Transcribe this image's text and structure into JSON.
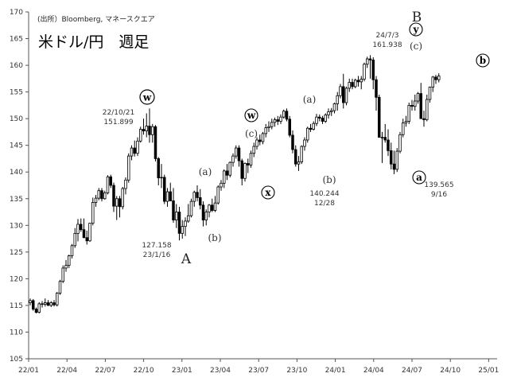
{
  "source": "(出所）Bloomberg, マネースクエア",
  "title": "米ドル/円　週足",
  "chart_data": {
    "type": "candlestick",
    "title": "米ドル/円　週足",
    "xlabel": "",
    "ylabel": "",
    "ylim": [
      105,
      170
    ],
    "yticks": [
      105,
      110,
      115,
      120,
      125,
      130,
      135,
      140,
      145,
      150,
      155,
      160,
      165,
      170
    ],
    "xtick_labels": [
      "22/01",
      "22/04",
      "22/07",
      "22/10",
      "23/01",
      "23/04",
      "23/07",
      "23/10",
      "24/01",
      "24/04",
      "24/07",
      "24/10",
      "25/01"
    ],
    "grid": false,
    "frequency": "weekly",
    "x_range": [
      "2022-01-03",
      "2025-01-06"
    ],
    "key_points": [
      {
        "x": "2022-10-21",
        "y": 151.899
      },
      {
        "x": "2023-01-16",
        "y": 127.158
      },
      {
        "x": "2023-12-28",
        "y": 140.244
      },
      {
        "x": "2024-07-03",
        "y": 161.938
      },
      {
        "x": "2024-09-16",
        "y": 139.565
      }
    ],
    "ohlc": [
      [
        115.5,
        116.3,
        115.0,
        115.9
      ],
      [
        115.9,
        116.2,
        114.0,
        114.3
      ],
      [
        114.3,
        114.6,
        113.5,
        113.7
      ],
      [
        113.7,
        115.6,
        113.5,
        115.3
      ],
      [
        115.3,
        115.8,
        114.6,
        115.2
      ],
      [
        115.2,
        116.3,
        114.8,
        115.5
      ],
      [
        115.5,
        116.0,
        114.9,
        115.0
      ],
      [
        115.0,
        115.8,
        114.7,
        115.5
      ],
      [
        115.5,
        116.0,
        114.8,
        115.1
      ],
      [
        115.1,
        117.5,
        114.8,
        117.3
      ],
      [
        117.3,
        119.8,
        117.0,
        119.5
      ],
      [
        119.5,
        122.5,
        119.2,
        122.0
      ],
      [
        122.0,
        123.5,
        121.3,
        122.5
      ],
      [
        122.5,
        124.5,
        122.0,
        124.3
      ],
      [
        124.3,
        126.5,
        123.8,
        126.2
      ],
      [
        126.2,
        129.5,
        125.8,
        128.5
      ],
      [
        128.5,
        131.2,
        127.0,
        130.2
      ],
      [
        130.2,
        131.3,
        128.8,
        129.2
      ],
      [
        129.2,
        131.3,
        127.6,
        127.7
      ],
      [
        127.7,
        129.0,
        126.4,
        127.1
      ],
      [
        127.1,
        130.5,
        126.9,
        130.4
      ],
      [
        130.4,
        135.2,
        130.0,
        134.3
      ],
      [
        134.3,
        135.7,
        133.5,
        135.1
      ],
      [
        135.1,
        137.0,
        134.7,
        136.5
      ],
      [
        136.5,
        137.0,
        134.5,
        135.0
      ],
      [
        135.0,
        136.5,
        134.8,
        136.1
      ],
      [
        136.1,
        139.4,
        135.8,
        139.1
      ],
      [
        139.1,
        139.5,
        137.0,
        137.5
      ],
      [
        137.5,
        138.0,
        132.5,
        133.6
      ],
      [
        133.6,
        135.5,
        131.0,
        135.0
      ],
      [
        135.0,
        135.5,
        131.5,
        133.5
      ],
      [
        133.5,
        137.2,
        133.0,
        136.9
      ],
      [
        136.9,
        139.0,
        135.8,
        138.5
      ],
      [
        138.5,
        143.5,
        138.0,
        143.0
      ],
      [
        143.0,
        145.0,
        142.2,
        144.5
      ],
      [
        144.5,
        145.9,
        142.9,
        143.5
      ],
      [
        143.5,
        146.5,
        143.0,
        145.8
      ],
      [
        145.8,
        148.5,
        145.5,
        148.0
      ],
      [
        148.0,
        150.0,
        147.0,
        147.7
      ],
      [
        147.7,
        151.0,
        146.5,
        148.6
      ],
      [
        148.6,
        151.9,
        145.5,
        147.0
      ],
      [
        147.0,
        149.0,
        145.5,
        148.5
      ],
      [
        148.5,
        148.8,
        142.0,
        142.5
      ],
      [
        142.5,
        142.8,
        137.5,
        138.9
      ],
      [
        138.9,
        141.5,
        137.0,
        139.0
      ],
      [
        139.0,
        139.5,
        134.0,
        134.5
      ],
      [
        134.5,
        137.0,
        133.5,
        136.3
      ],
      [
        136.3,
        138.0,
        134.5,
        134.6
      ],
      [
        134.6,
        137.0,
        130.5,
        131.0
      ],
      [
        131.0,
        134.0,
        129.5,
        132.5
      ],
      [
        132.5,
        133.5,
        127.2,
        128.5
      ],
      [
        128.5,
        131.0,
        127.5,
        129.8
      ],
      [
        129.8,
        131.5,
        128.0,
        130.8
      ],
      [
        130.8,
        134.0,
        130.5,
        131.8
      ],
      [
        131.8,
        135.0,
        131.5,
        134.5
      ],
      [
        134.5,
        136.5,
        133.5,
        136.2
      ],
      [
        136.2,
        137.5,
        134.5,
        135.2
      ],
      [
        135.2,
        136.8,
        133.0,
        133.8
      ],
      [
        133.8,
        134.5,
        129.8,
        131.0
      ],
      [
        131.0,
        133.0,
        130.0,
        132.5
      ],
      [
        132.5,
        134.0,
        131.5,
        133.8
      ],
      [
        133.8,
        135.0,
        132.5,
        132.8
      ],
      [
        132.8,
        135.5,
        132.5,
        134.2
      ],
      [
        134.2,
        137.5,
        133.9,
        137.2
      ],
      [
        137.2,
        138.5,
        136.5,
        137.9
      ],
      [
        137.9,
        140.5,
        137.0,
        140.2
      ],
      [
        140.2,
        141.5,
        138.5,
        139.4
      ],
      [
        139.4,
        142.0,
        139.0,
        141.8
      ],
      [
        141.8,
        143.5,
        141.0,
        143.0
      ],
      [
        143.0,
        145.0,
        142.5,
        144.5
      ],
      [
        144.5,
        145.0,
        141.0,
        142.1
      ],
      [
        142.1,
        142.5,
        137.5,
        138.8
      ],
      [
        138.8,
        141.8,
        138.2,
        141.6
      ],
      [
        141.6,
        142.5,
        139.8,
        141.3
      ],
      [
        141.3,
        144.0,
        140.8,
        143.5
      ],
      [
        143.5,
        145.5,
        142.8,
        144.8
      ],
      [
        144.8,
        146.5,
        144.2,
        146.0
      ],
      [
        146.0,
        147.0,
        145.0,
        145.7
      ],
      [
        145.7,
        147.5,
        145.2,
        147.2
      ],
      [
        147.2,
        149.0,
        146.5,
        148.3
      ],
      [
        148.3,
        149.5,
        147.5,
        148.5
      ],
      [
        148.5,
        150.0,
        148.0,
        149.3
      ],
      [
        149.3,
        150.2,
        148.5,
        149.8
      ],
      [
        149.8,
        150.5,
        148.8,
        149.5
      ],
      [
        149.5,
        150.8,
        149.0,
        150.3
      ],
      [
        150.3,
        151.7,
        150.0,
        151.4
      ],
      [
        151.4,
        151.9,
        149.5,
        149.9
      ],
      [
        149.9,
        150.5,
        146.5,
        146.9
      ],
      [
        146.9,
        147.8,
        143.5,
        144.2
      ],
      [
        144.2,
        145.0,
        141.0,
        141.5
      ],
      [
        141.5,
        143.0,
        140.2,
        141.9
      ],
      [
        141.9,
        145.0,
        141.5,
        144.8
      ],
      [
        144.8,
        146.5,
        144.0,
        146.0
      ],
      [
        146.0,
        148.5,
        145.5,
        148.2
      ],
      [
        148.2,
        149.0,
        147.5,
        148.0
      ],
      [
        148.0,
        149.5,
        147.8,
        149.1
      ],
      [
        149.1,
        150.9,
        148.6,
        150.3
      ],
      [
        150.3,
        150.8,
        149.5,
        150.1
      ],
      [
        150.1,
        150.5,
        149.0,
        149.5
      ],
      [
        149.5,
        151.0,
        149.2,
        150.7
      ],
      [
        150.7,
        151.9,
        150.0,
        151.3
      ],
      [
        151.3,
        152.0,
        150.5,
        151.5
      ],
      [
        151.5,
        153.0,
        151.0,
        152.8
      ],
      [
        152.8,
        155.0,
        151.5,
        154.3
      ],
      [
        154.3,
        156.5,
        153.8,
        156.0
      ],
      [
        156.0,
        158.4,
        151.9,
        153.0
      ],
      [
        153.0,
        156.0,
        152.5,
        155.7
      ],
      [
        155.7,
        157.5,
        155.0,
        156.8
      ],
      [
        156.8,
        157.5,
        155.5,
        156.0
      ],
      [
        156.0,
        157.5,
        155.7,
        157.2
      ],
      [
        157.2,
        158.0,
        156.0,
        156.9
      ],
      [
        156.9,
        158.0,
        155.5,
        157.4
      ],
      [
        157.4,
        160.5,
        157.0,
        160.2
      ],
      [
        160.2,
        161.6,
        159.5,
        161.2
      ],
      [
        161.2,
        161.9,
        157.5,
        161.0
      ],
      [
        161.0,
        161.5,
        155.5,
        157.3
      ],
      [
        157.3,
        158.0,
        151.5,
        154.0
      ],
      [
        154.0,
        154.5,
        146.5,
        146.5
      ],
      [
        146.5,
        147.5,
        141.7,
        146.5
      ],
      [
        146.5,
        149.0,
        145.5,
        146.0
      ],
      [
        146.0,
        148.0,
        143.0,
        144.0
      ],
      [
        144.0,
        145.5,
        140.5,
        141.5
      ],
      [
        141.5,
        144.0,
        139.6,
        140.5
      ],
      [
        140.5,
        144.5,
        140.0,
        143.9
      ],
      [
        143.9,
        147.5,
        143.5,
        147.0
      ],
      [
        147.0,
        150.0,
        146.5,
        149.2
      ],
      [
        149.2,
        150.5,
        148.5,
        149.5
      ],
      [
        149.5,
        153.0,
        149.0,
        152.5
      ],
      [
        152.5,
        153.5,
        151.5,
        152.3
      ],
      [
        152.3,
        154.5,
        151.5,
        153.3
      ],
      [
        153.3,
        155.0,
        152.8,
        154.7
      ],
      [
        154.7,
        156.7,
        150.0,
        150.0
      ],
      [
        150.0,
        151.5,
        148.5,
        149.8
      ],
      [
        149.8,
        154.5,
        149.5,
        153.6
      ],
      [
        153.6,
        156.0,
        153.0,
        155.9
      ],
      [
        155.9,
        158.0,
        155.0,
        157.8
      ],
      [
        157.8,
        158.2,
        156.5,
        157.3
      ],
      [
        157.3,
        158.5,
        156.8,
        158.0
      ]
    ]
  },
  "annotations": {
    "w_circle": "w",
    "w_date": "22/10/21",
    "w_value": "151.899",
    "a_small": "(a)",
    "b_small": "(b)",
    "a_low_value": "127.158",
    "a_low_date": "23/1/16",
    "a_cap": "A",
    "w2_circle": "w",
    "c_small": "(c)",
    "x_circle": "x",
    "a2_small": "(a)",
    "b2_small": "(b)",
    "b2_value": "140.244",
    "b2_date": "12/28",
    "b_top_date": "24/7/3",
    "b_top_value": "161.938",
    "b_cap": "B",
    "y_circle": "y",
    "c2_small": "(c)",
    "a3_circle": "a",
    "a3_value": "139.565",
    "a3_date": "9/16",
    "b3_circle": "b"
  }
}
